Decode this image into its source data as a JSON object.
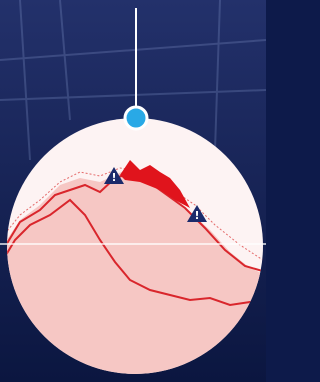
{
  "warnings": [
    {
      "label": "!"
    },
    {
      "label": "!"
    }
  ]
}
